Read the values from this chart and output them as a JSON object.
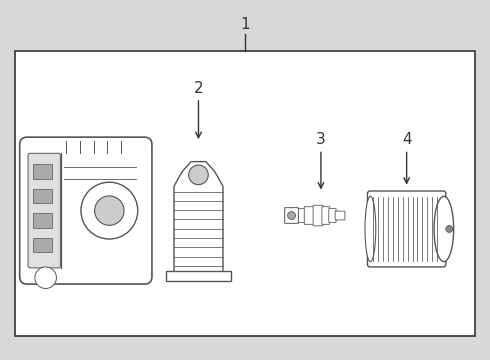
{
  "background_color": "#e8e8e8",
  "box_bg": "#ffffff",
  "box_border": "#333333",
  "outer_bg": "#d8d8d8",
  "label1": "1",
  "label2": "2",
  "label3": "3",
  "label4": "4",
  "label_fontsize": 11,
  "line_color": "#333333",
  "part_line_color": "#555555"
}
